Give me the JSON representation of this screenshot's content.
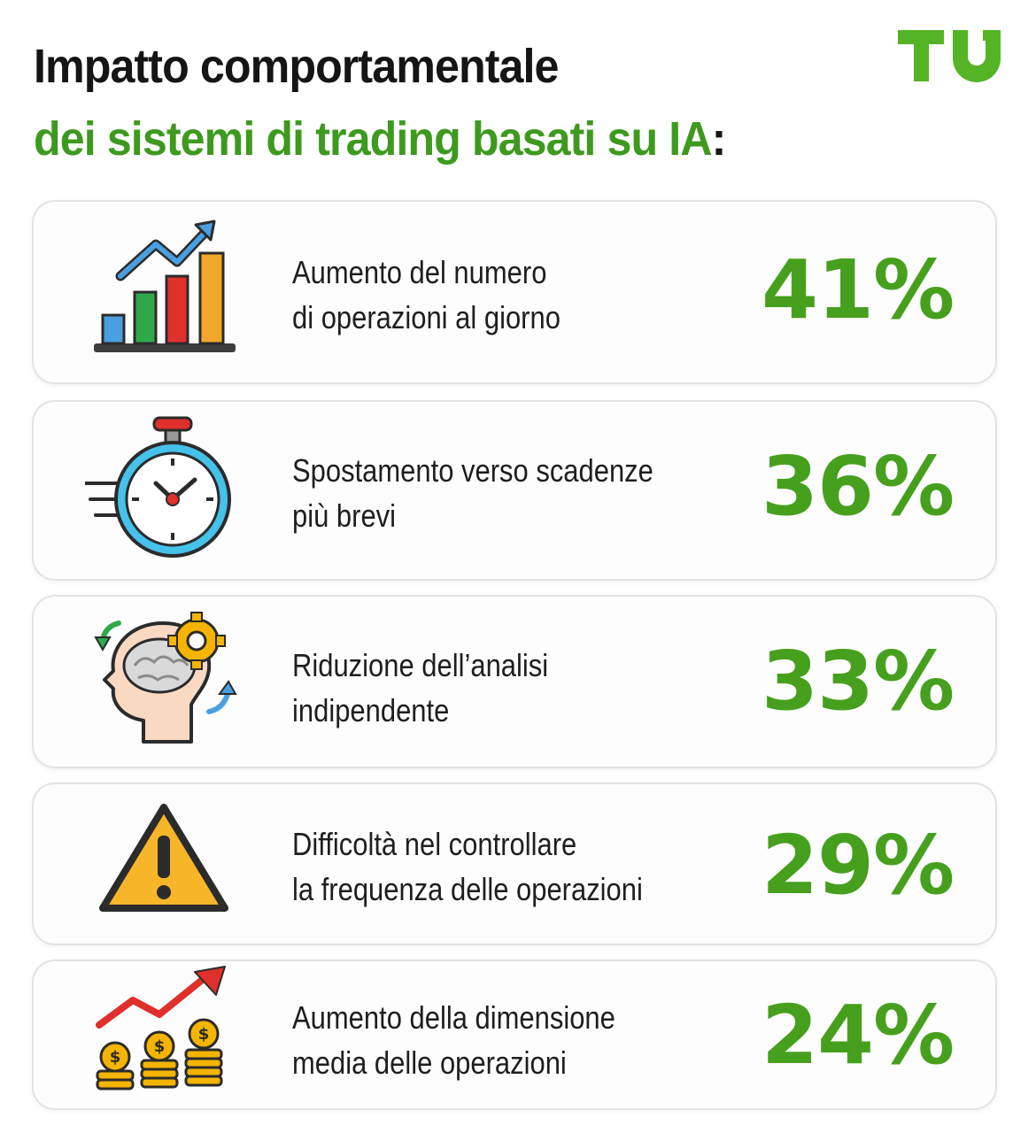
{
  "header": {
    "title_line1": "Impatto comportamentale",
    "title_line2": "dei sistemi di trading basati su IA",
    "title_colon": ":",
    "logo_text": "TU"
  },
  "colors": {
    "accent_green": "#46a01d",
    "title_dark": "#151515"
  },
  "items": [
    {
      "line1": "Aumento del numero",
      "line2": "di operazioni al giorno",
      "value": "41%",
      "icon": "bar-chart-growth-icon"
    },
    {
      "line1": "Spostamento verso scadenze",
      "line2": "più brevi",
      "value": "36%",
      "icon": "stopwatch-icon"
    },
    {
      "line1": "Riduzione dell’analisi",
      "line2": "indipendente",
      "value": "33%",
      "icon": "head-brain-gear-icon"
    },
    {
      "line1": "Difficoltà nel controllare",
      "line2": "la frequenza delle operazioni",
      "value": "29%",
      "icon": "warning-triangle-icon"
    },
    {
      "line1": "Aumento della dimensione",
      "line2": "media delle operazioni",
      "value": "24%",
      "icon": "coins-growth-icon"
    }
  ]
}
